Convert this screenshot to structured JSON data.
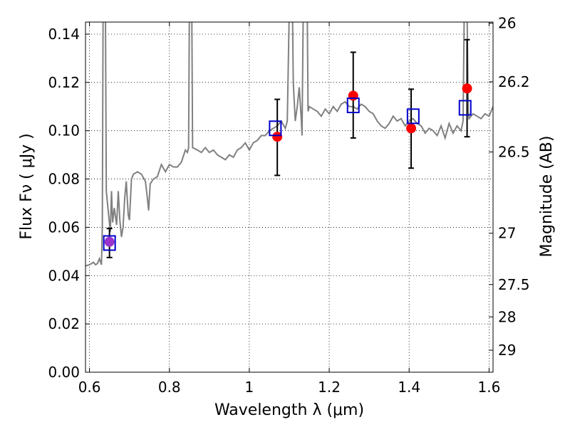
{
  "chart_data": {
    "type": "scatter",
    "xlabel": "Wavelength  λ (μm)",
    "ylabel": "Flux  Fν  ( μJy )",
    "y2label": "Magnitude (AB)",
    "xlim": [
      0.59,
      1.61
    ],
    "ylim": [
      0.0,
      0.145
    ],
    "x_ticks": [
      {
        "v": 0.6,
        "label": "0.6"
      },
      {
        "v": 0.8,
        "label": "0.8"
      },
      {
        "v": 1.0,
        "label": "1"
      },
      {
        "v": 1.2,
        "label": "1.2"
      },
      {
        "v": 1.4,
        "label": "1.4"
      },
      {
        "v": 1.6,
        "label": "1.6"
      }
    ],
    "y_ticks": [
      {
        "v": 0.0,
        "label": "0.00"
      },
      {
        "v": 0.02,
        "label": "0.02"
      },
      {
        "v": 0.04,
        "label": "0.04"
      },
      {
        "v": 0.06,
        "label": "0.06"
      },
      {
        "v": 0.08,
        "label": "0.08"
      },
      {
        "v": 0.1,
        "label": "0.10"
      },
      {
        "v": 0.12,
        "label": "0.12"
      },
      {
        "v": 0.14,
        "label": "0.14"
      }
    ],
    "mag_ticks": [
      {
        "label": "26",
        "mag": 26.0
      },
      {
        "label": "26.2",
        "mag": 26.2
      },
      {
        "label": "26.5",
        "mag": 26.5
      },
      {
        "label": "27",
        "mag": 27.0
      },
      {
        "label": "27.5",
        "mag": 27.5
      },
      {
        "label": "28",
        "mag": 28.0
      },
      {
        "label": "29",
        "mag": 29.0
      }
    ],
    "grid": true,
    "colors": {
      "model": "#808080",
      "observed": "#ff0000",
      "model_band": "#0000cc",
      "overlap": "#9933cc",
      "errorbar": "#000000"
    },
    "observed_points": [
      {
        "x": 0.65,
        "y": 0.054,
        "yerr_low": 0.0475,
        "yerr_high": 0.0595
      },
      {
        "x": 1.07,
        "y": 0.0975,
        "yerr_low": 0.0815,
        "yerr_high": 0.113
      },
      {
        "x": 1.26,
        "y": 0.1145,
        "yerr_low": 0.097,
        "yerr_high": 0.1325
      },
      {
        "x": 1.405,
        "y": 0.101,
        "yerr_low": 0.0845,
        "yerr_high": 0.1172
      },
      {
        "x": 1.545,
        "y": 0.1175,
        "yerr_low": 0.0975,
        "yerr_high": 0.1377
      }
    ],
    "model_band_points": [
      {
        "x": 0.65,
        "y": 0.0535
      },
      {
        "x": 1.065,
        "y": 0.101
      },
      {
        "x": 1.26,
        "y": 0.1105
      },
      {
        "x": 1.41,
        "y": 0.106
      },
      {
        "x": 1.54,
        "y": 0.1095
      }
    ],
    "model_spectrum": [
      [
        0.59,
        0.044
      ],
      [
        0.6,
        0.0445
      ],
      [
        0.61,
        0.0455
      ],
      [
        0.615,
        0.0445
      ],
      [
        0.62,
        0.045
      ],
      [
        0.625,
        0.047
      ],
      [
        0.63,
        0.0445
      ],
      [
        0.632,
        0.06
      ],
      [
        0.634,
        0.15
      ],
      [
        0.64,
        0.15
      ],
      [
        0.642,
        0.075
      ],
      [
        0.648,
        0.065
      ],
      [
        0.652,
        0.058
      ],
      [
        0.655,
        0.075
      ],
      [
        0.658,
        0.062
      ],
      [
        0.662,
        0.068
      ],
      [
        0.668,
        0.061
      ],
      [
        0.672,
        0.075
      ],
      [
        0.676,
        0.063
      ],
      [
        0.68,
        0.056
      ],
      [
        0.684,
        0.06
      ],
      [
        0.688,
        0.072
      ],
      [
        0.692,
        0.079
      ],
      [
        0.697,
        0.065
      ],
      [
        0.7,
        0.063
      ],
      [
        0.705,
        0.08
      ],
      [
        0.71,
        0.082
      ],
      [
        0.72,
        0.083
      ],
      [
        0.73,
        0.082
      ],
      [
        0.74,
        0.079
      ],
      [
        0.745,
        0.072
      ],
      [
        0.748,
        0.067
      ],
      [
        0.752,
        0.078
      ],
      [
        0.76,
        0.08
      ],
      [
        0.77,
        0.081
      ],
      [
        0.78,
        0.086
      ],
      [
        0.79,
        0.083
      ],
      [
        0.8,
        0.086
      ],
      [
        0.81,
        0.085
      ],
      [
        0.82,
        0.085
      ],
      [
        0.83,
        0.087
      ],
      [
        0.84,
        0.092
      ],
      [
        0.845,
        0.091
      ],
      [
        0.848,
        0.093
      ],
      [
        0.85,
        0.15
      ],
      [
        0.856,
        0.15
      ],
      [
        0.858,
        0.093
      ],
      [
        0.87,
        0.092
      ],
      [
        0.88,
        0.091
      ],
      [
        0.89,
        0.093
      ],
      [
        0.9,
        0.091
      ],
      [
        0.91,
        0.092
      ],
      [
        0.92,
        0.09
      ],
      [
        0.93,
        0.089
      ],
      [
        0.94,
        0.088
      ],
      [
        0.95,
        0.09
      ],
      [
        0.96,
        0.089
      ],
      [
        0.97,
        0.092
      ],
      [
        0.98,
        0.093
      ],
      [
        0.99,
        0.095
      ],
      [
        1.0,
        0.092
      ],
      [
        1.01,
        0.095
      ],
      [
        1.02,
        0.096
      ],
      [
        1.03,
        0.098
      ],
      [
        1.04,
        0.098
      ],
      [
        1.05,
        0.1
      ],
      [
        1.06,
        0.101
      ],
      [
        1.07,
        0.102
      ],
      [
        1.08,
        0.104
      ],
      [
        1.09,
        0.101
      ],
      [
        1.095,
        0.104
      ],
      [
        1.1,
        0.15
      ],
      [
        1.108,
        0.15
      ],
      [
        1.11,
        0.12
      ],
      [
        1.115,
        0.104
      ],
      [
        1.12,
        0.11
      ],
      [
        1.125,
        0.118
      ],
      [
        1.13,
        0.105
      ],
      [
        1.132,
        0.098
      ],
      [
        1.135,
        0.15
      ],
      [
        1.145,
        0.15
      ],
      [
        1.147,
        0.108
      ],
      [
        1.15,
        0.11
      ],
      [
        1.16,
        0.109
      ],
      [
        1.17,
        0.108
      ],
      [
        1.18,
        0.106
      ],
      [
        1.19,
        0.109
      ],
      [
        1.2,
        0.107
      ],
      [
        1.21,
        0.11
      ],
      [
        1.22,
        0.108
      ],
      [
        1.23,
        0.111
      ],
      [
        1.24,
        0.112
      ],
      [
        1.25,
        0.11
      ],
      [
        1.26,
        0.11
      ],
      [
        1.27,
        0.109
      ],
      [
        1.28,
        0.111
      ],
      [
        1.29,
        0.11
      ],
      [
        1.3,
        0.108
      ],
      [
        1.31,
        0.107
      ],
      [
        1.32,
        0.104
      ],
      [
        1.33,
        0.102
      ],
      [
        1.34,
        0.101
      ],
      [
        1.35,
        0.103
      ],
      [
        1.36,
        0.106
      ],
      [
        1.37,
        0.104
      ],
      [
        1.38,
        0.105
      ],
      [
        1.39,
        0.102
      ],
      [
        1.4,
        0.104
      ],
      [
        1.41,
        0.105
      ],
      [
        1.42,
        0.103
      ],
      [
        1.43,
        0.102
      ],
      [
        1.44,
        0.099
      ],
      [
        1.45,
        0.101
      ],
      [
        1.46,
        0.1
      ],
      [
        1.47,
        0.098
      ],
      [
        1.48,
        0.102
      ],
      [
        1.49,
        0.097
      ],
      [
        1.5,
        0.103
      ],
      [
        1.51,
        0.099
      ],
      [
        1.52,
        0.102
      ],
      [
        1.53,
        0.1
      ],
      [
        1.535,
        0.104
      ],
      [
        1.538,
        0.15
      ],
      [
        1.545,
        0.15
      ],
      [
        1.548,
        0.108
      ],
      [
        1.55,
        0.105
      ],
      [
        1.56,
        0.107
      ],
      [
        1.57,
        0.106
      ],
      [
        1.58,
        0.105
      ],
      [
        1.59,
        0.107
      ],
      [
        1.6,
        0.106
      ],
      [
        1.61,
        0.11
      ]
    ]
  }
}
